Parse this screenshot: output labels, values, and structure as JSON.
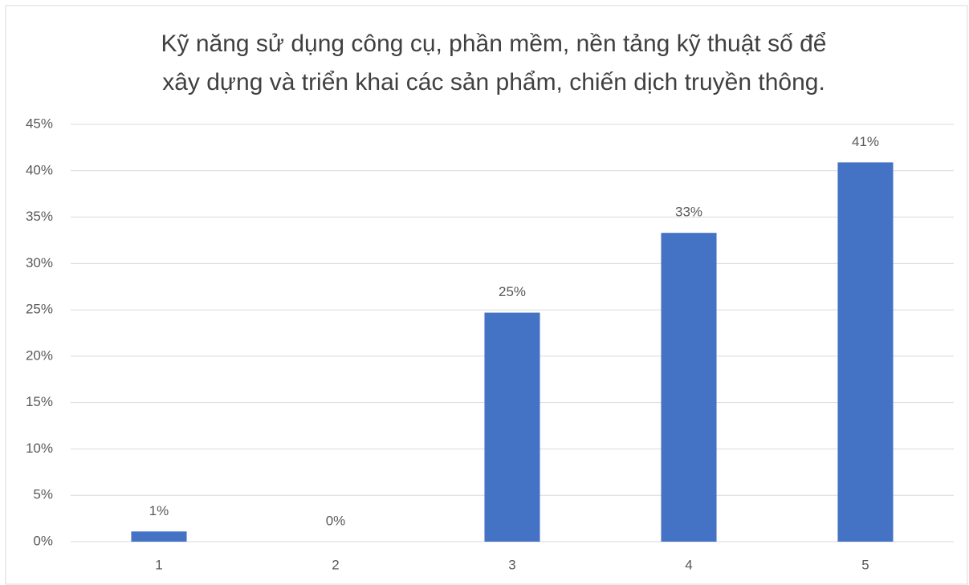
{
  "chart_data": {
    "type": "bar",
    "title": [
      "Kỹ năng sử dụng công cụ, phần mềm, nền tảng kỹ thuật số để",
      "xây dựng và triển khai các sản phẩm, chiến dịch truyền thông."
    ],
    "categories": [
      "1",
      "2",
      "3",
      "4",
      "5"
    ],
    "values": [
      1.1,
      0,
      24.7,
      33.3,
      40.9
    ],
    "value_labels": [
      "1%",
      "0%",
      "25%",
      "33%",
      "41%"
    ],
    "color": "#4472c4",
    "ylim": [
      0,
      45
    ],
    "yticks": [
      {
        "value": 0,
        "label": "0%"
      },
      {
        "value": 5,
        "label": "5%"
      },
      {
        "value": 10,
        "label": "10%"
      },
      {
        "value": 15,
        "label": "15%"
      },
      {
        "value": 20,
        "label": "20%"
      },
      {
        "value": 25,
        "label": "25%"
      },
      {
        "value": 30,
        "label": "30%"
      },
      {
        "value": 35,
        "label": "35%"
      },
      {
        "value": 40,
        "label": "40%"
      },
      {
        "value": 45,
        "label": "45%"
      }
    ],
    "grid": true
  }
}
